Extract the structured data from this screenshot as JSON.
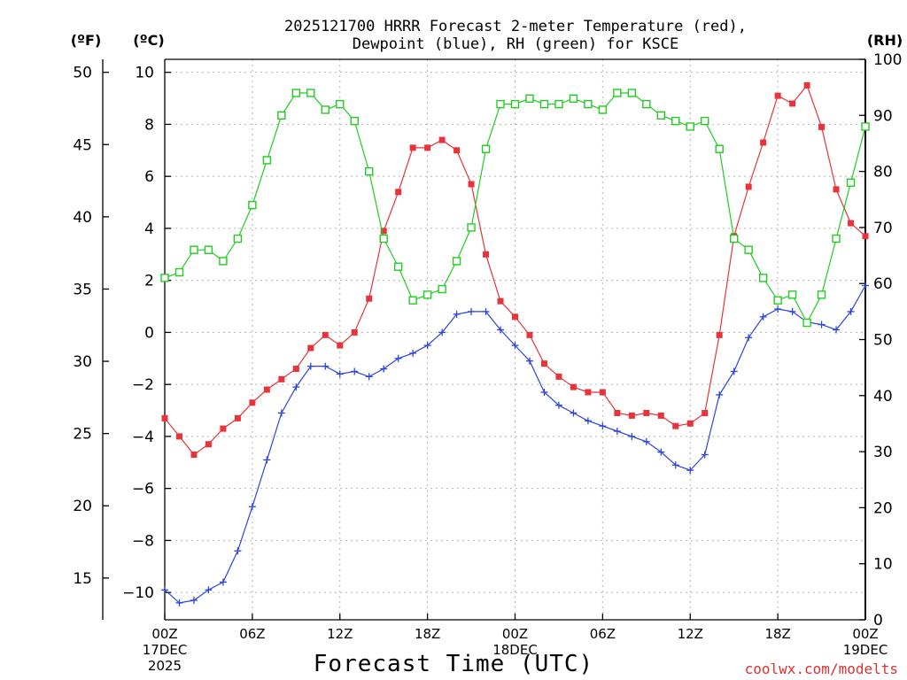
{
  "chart_data": {
    "type": "line",
    "title_line1": "2025121700 HRRR Forecast 2-meter Temperature (red),",
    "title_line2": "Dewpoint (blue), RH (green) for KSCE",
    "xlabel": "Forecast Time (UTC)",
    "credit": "coolwx.com/modelts",
    "left_unit_f": "(ºF)",
    "left_unit_c": "(ºC)",
    "right_unit": "(RH)",
    "x_hours_start": 0,
    "x_hours_end": 48,
    "x_ticks": [
      {
        "hour": 0,
        "label": "00Z",
        "sub1": "17DEC",
        "sub2": "2025"
      },
      {
        "hour": 6,
        "label": "06Z"
      },
      {
        "hour": 12,
        "label": "12Z"
      },
      {
        "hour": 18,
        "label": "18Z"
      },
      {
        "hour": 24,
        "label": "00Z",
        "sub1": "18DEC"
      },
      {
        "hour": 30,
        "label": "06Z"
      },
      {
        "hour": 36,
        "label": "12Z"
      },
      {
        "hour": 42,
        "label": "18Z"
      },
      {
        "hour": 48,
        "label": "00Z",
        "sub1": "19DEC"
      }
    ],
    "celsius_axis": {
      "min": -11.05,
      "max": 10.5,
      "ticks": [
        -10,
        -8,
        -6,
        -4,
        -2,
        0,
        2,
        4,
        6,
        8,
        10
      ],
      "tick_labels": [
        "−10",
        "−8",
        "−6",
        "−4",
        "−2",
        "0",
        "2",
        "4",
        "6",
        "8",
        "10"
      ]
    },
    "fahrenheit_axis": {
      "ticks": [
        15,
        20,
        25,
        30,
        35,
        40,
        45,
        50
      ]
    },
    "rh_axis": {
      "min": 0,
      "max": 100,
      "ticks": [
        0,
        10,
        20,
        30,
        40,
        50,
        60,
        70,
        80,
        90,
        100
      ]
    },
    "series": [
      {
        "name": "Temperature",
        "color": "#e8333a",
        "marker": "filled-square",
        "axis": "celsius",
        "values": [
          -3.3,
          -4.0,
          -4.7,
          -4.3,
          -3.7,
          -3.3,
          -2.7,
          -2.2,
          -1.8,
          -1.4,
          -0.6,
          -0.1,
          -0.5,
          0.0,
          1.3,
          3.9,
          5.4,
          7.1,
          7.1,
          7.4,
          7.0,
          5.7,
          3.0,
          1.2,
          0.6,
          -0.1,
          -1.2,
          -1.7,
          -2.1,
          -2.3,
          -2.3,
          -3.1,
          -3.2,
          -3.1,
          -3.2,
          -3.6,
          -3.5,
          -3.1,
          -0.1,
          3.7,
          5.6,
          7.3,
          9.1,
          8.8,
          9.5,
          7.9,
          5.5,
          4.2,
          3.7
        ]
      },
      {
        "name": "Dewpoint",
        "color": "#2b44e0",
        "marker": "plus",
        "axis": "celsius",
        "values": [
          -9.9,
          -10.4,
          -10.3,
          -9.9,
          -9.6,
          -8.4,
          -6.7,
          -4.9,
          -3.1,
          -2.1,
          -1.3,
          -1.3,
          -1.6,
          -1.5,
          -1.7,
          -1.4,
          -1.0,
          -0.8,
          -0.5,
          0.0,
          0.7,
          0.8,
          0.8,
          0.1,
          -0.5,
          -1.1,
          -2.3,
          -2.8,
          -3.1,
          -3.4,
          -3.6,
          -3.8,
          -4.0,
          -4.2,
          -4.6,
          -5.1,
          -5.3,
          -4.7,
          -2.4,
          -1.5,
          -0.2,
          0.6,
          0.9,
          0.8,
          0.4,
          0.3,
          0.1,
          0.8,
          1.8
        ]
      },
      {
        "name": "RH",
        "color": "#22cc22",
        "marker": "open-square",
        "axis": "rh",
        "values": [
          61,
          62,
          66,
          66,
          64,
          68,
          74,
          82,
          90,
          94,
          94,
          91,
          92,
          89,
          80,
          68,
          63,
          57,
          58,
          59,
          64,
          70,
          84,
          92,
          92,
          93,
          92,
          92,
          93,
          92,
          91,
          94,
          94,
          92,
          90,
          89,
          88,
          89,
          84,
          68,
          66,
          61,
          57,
          58,
          53,
          58,
          68,
          78,
          88
        ]
      }
    ]
  }
}
